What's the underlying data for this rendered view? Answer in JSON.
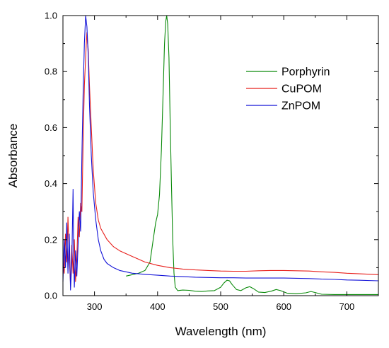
{
  "chart_data": {
    "type": "line",
    "title": "",
    "xlabel": "Wavelength (nm)",
    "ylabel": "Absorbance",
    "xlim": [
      250,
      750
    ],
    "ylim": [
      0,
      1.0
    ],
    "x_ticks": [
      "300",
      "400",
      "500",
      "600",
      "700"
    ],
    "y_ticks": [
      "0.0",
      "0.2",
      "0.4",
      "0.6",
      "0.8",
      "1.0"
    ],
    "grid": false,
    "legend_position": "top-right",
    "series": [
      {
        "name": "Porphyrin",
        "color": "#0a8a0a",
        "points": [
          [
            350,
            0.07
          ],
          [
            360,
            0.075
          ],
          [
            370,
            0.08
          ],
          [
            380,
            0.09
          ],
          [
            388,
            0.12
          ],
          [
            393,
            0.2
          ],
          [
            397,
            0.26
          ],
          [
            400,
            0.29
          ],
          [
            403,
            0.36
          ],
          [
            406,
            0.52
          ],
          [
            409,
            0.74
          ],
          [
            411,
            0.9
          ],
          [
            413,
            0.98
          ],
          [
            414.5,
            1.0
          ],
          [
            416,
            0.97
          ],
          [
            418,
            0.85
          ],
          [
            420,
            0.62
          ],
          [
            422,
            0.4
          ],
          [
            424,
            0.2
          ],
          [
            426,
            0.08
          ],
          [
            428,
            0.03
          ],
          [
            432,
            0.018
          ],
          [
            440,
            0.02
          ],
          [
            450,
            0.019
          ],
          [
            460,
            0.016
          ],
          [
            470,
            0.015
          ],
          [
            480,
            0.017
          ],
          [
            490,
            0.018
          ],
          [
            500,
            0.03
          ],
          [
            505,
            0.045
          ],
          [
            510,
            0.055
          ],
          [
            514,
            0.053
          ],
          [
            518,
            0.04
          ],
          [
            525,
            0.022
          ],
          [
            532,
            0.018
          ],
          [
            540,
            0.028
          ],
          [
            546,
            0.032
          ],
          [
            552,
            0.025
          ],
          [
            560,
            0.013
          ],
          [
            570,
            0.011
          ],
          [
            580,
            0.016
          ],
          [
            588,
            0.022
          ],
          [
            595,
            0.018
          ],
          [
            605,
            0.009
          ],
          [
            620,
            0.007
          ],
          [
            635,
            0.01
          ],
          [
            643,
            0.015
          ],
          [
            650,
            0.011
          ],
          [
            660,
            0.005
          ],
          [
            680,
            0.004
          ],
          [
            700,
            0.004
          ],
          [
            720,
            0.004
          ],
          [
            750,
            0.004
          ]
        ]
      },
      {
        "name": "CuPOM",
        "color": "#e8201c",
        "points": [
          [
            250,
            0.16
          ],
          [
            252,
            0.08
          ],
          [
            254,
            0.22
          ],
          [
            256,
            0.12
          ],
          [
            258,
            0.28
          ],
          [
            260,
            0.14
          ],
          [
            262,
            0.04
          ],
          [
            264,
            0.18
          ],
          [
            266,
            0.08
          ],
          [
            268,
            0.2
          ],
          [
            270,
            0.05
          ],
          [
            272,
            0.13
          ],
          [
            274,
            0.28
          ],
          [
            276,
            0.21
          ],
          [
            278,
            0.33
          ],
          [
            280,
            0.3
          ],
          [
            282,
            0.55
          ],
          [
            284,
            0.75
          ],
          [
            286,
            0.85
          ],
          [
            287,
            0.9
          ],
          [
            288,
            0.94
          ],
          [
            289,
            0.9
          ],
          [
            290,
            0.88
          ],
          [
            292,
            0.75
          ],
          [
            295,
            0.6
          ],
          [
            298,
            0.45
          ],
          [
            302,
            0.33
          ],
          [
            306,
            0.27
          ],
          [
            310,
            0.24
          ],
          [
            320,
            0.2
          ],
          [
            330,
            0.175
          ],
          [
            340,
            0.16
          ],
          [
            350,
            0.15
          ],
          [
            360,
            0.14
          ],
          [
            370,
            0.13
          ],
          [
            380,
            0.12
          ],
          [
            400,
            0.108
          ],
          [
            420,
            0.1
          ],
          [
            440,
            0.095
          ],
          [
            460,
            0.092
          ],
          [
            480,
            0.09
          ],
          [
            500,
            0.088
          ],
          [
            520,
            0.087
          ],
          [
            540,
            0.087
          ],
          [
            560,
            0.089
          ],
          [
            580,
            0.09
          ],
          [
            600,
            0.09
          ],
          [
            620,
            0.089
          ],
          [
            640,
            0.088
          ],
          [
            660,
            0.085
          ],
          [
            680,
            0.083
          ],
          [
            700,
            0.08
          ],
          [
            720,
            0.078
          ],
          [
            750,
            0.075
          ]
        ]
      },
      {
        "name": "ZnPOM",
        "color": "#1414d8",
        "points": [
          [
            250,
            0.05
          ],
          [
            252,
            0.2
          ],
          [
            254,
            0.1
          ],
          [
            256,
            0.26
          ],
          [
            258,
            0.08
          ],
          [
            260,
            0.22
          ],
          [
            262,
            0.02
          ],
          [
            264,
            0.12
          ],
          [
            266,
            0.38
          ],
          [
            267,
            0.15
          ],
          [
            268,
            0.03
          ],
          [
            270,
            0.16
          ],
          [
            272,
            0.07
          ],
          [
            274,
            0.18
          ],
          [
            276,
            0.3
          ],
          [
            278,
            0.23
          ],
          [
            280,
            0.5
          ],
          [
            282,
            0.72
          ],
          [
            284,
            0.9
          ],
          [
            286,
            1.0
          ],
          [
            288,
            0.96
          ],
          [
            290,
            0.86
          ],
          [
            292,
            0.68
          ],
          [
            295,
            0.5
          ],
          [
            298,
            0.37
          ],
          [
            302,
            0.27
          ],
          [
            306,
            0.2
          ],
          [
            310,
            0.16
          ],
          [
            315,
            0.13
          ],
          [
            320,
            0.115
          ],
          [
            330,
            0.1
          ],
          [
            340,
            0.09
          ],
          [
            350,
            0.085
          ],
          [
            360,
            0.08
          ],
          [
            370,
            0.078
          ],
          [
            380,
            0.076
          ],
          [
            400,
            0.073
          ],
          [
            420,
            0.07
          ],
          [
            440,
            0.068
          ],
          [
            460,
            0.066
          ],
          [
            480,
            0.065
          ],
          [
            500,
            0.064
          ],
          [
            520,
            0.064
          ],
          [
            540,
            0.063
          ],
          [
            560,
            0.063
          ],
          [
            580,
            0.063
          ],
          [
            600,
            0.063
          ],
          [
            620,
            0.062
          ],
          [
            640,
            0.061
          ],
          [
            660,
            0.059
          ],
          [
            680,
            0.058
          ],
          [
            700,
            0.056
          ],
          [
            720,
            0.055
          ],
          [
            750,
            0.053
          ]
        ]
      }
    ]
  }
}
